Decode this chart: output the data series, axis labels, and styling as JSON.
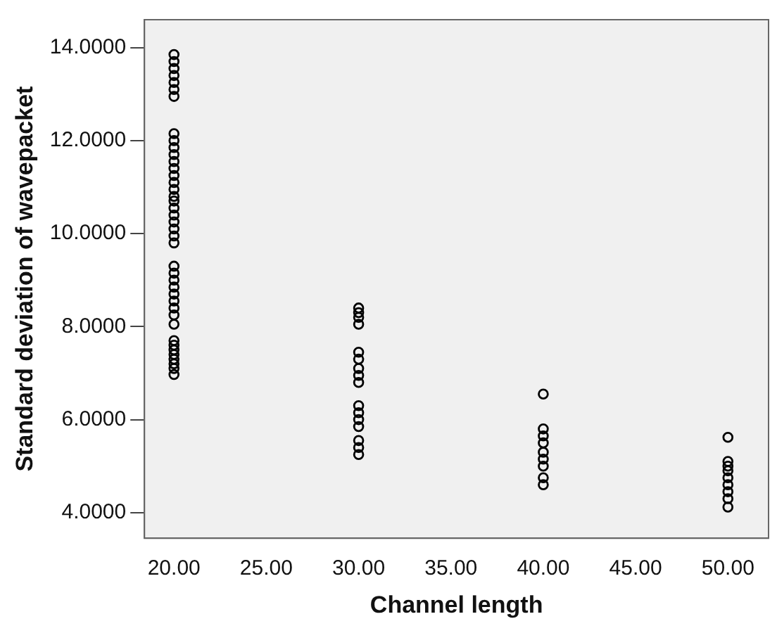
{
  "chart_data": {
    "type": "scatter",
    "xlabel": "Channel length",
    "ylabel": "Standard deviation of wavepacket",
    "xlim": [
      18.4,
      52.2
    ],
    "ylim": [
      3.45,
      14.6
    ],
    "xticks": [
      {
        "value": 20,
        "label": "20.00"
      },
      {
        "value": 25,
        "label": "25.00"
      },
      {
        "value": 30,
        "label": "30.00"
      },
      {
        "value": 35,
        "label": "35.00"
      },
      {
        "value": 40,
        "label": "40.00"
      },
      {
        "value": 45,
        "label": "45.00"
      },
      {
        "value": 50,
        "label": "50.00"
      }
    ],
    "yticks": [
      {
        "value": 4,
        "label": "4.0000"
      },
      {
        "value": 6,
        "label": "6.0000"
      },
      {
        "value": 8,
        "label": "8.0000"
      },
      {
        "value": 10,
        "label": "10.0000"
      },
      {
        "value": 12,
        "label": "12.0000"
      },
      {
        "value": 14,
        "label": "14.0000"
      }
    ],
    "grid": false,
    "legend": false,
    "marker": "circle",
    "series": [
      {
        "color": "#000000",
        "x": [
          20,
          20,
          20,
          20,
          20,
          20,
          20,
          20,
          20,
          20,
          20,
          20,
          20,
          20,
          20,
          20,
          20,
          20,
          20,
          20,
          20,
          20,
          20,
          20,
          20,
          20,
          20,
          20,
          20,
          20,
          20,
          20,
          20,
          20,
          20,
          20,
          20,
          20,
          20,
          20,
          20,
          30,
          30,
          30,
          30,
          30,
          30,
          30,
          30,
          30,
          30,
          30,
          30,
          30,
          30,
          30,
          30,
          40,
          40,
          40,
          40,
          40,
          40,
          40,
          40,
          40,
          50,
          50,
          50,
          50,
          50,
          50,
          50,
          50,
          50
        ],
        "values": [
          13.85,
          13.7,
          13.55,
          13.4,
          13.25,
          13.1,
          12.95,
          12.15,
          12.0,
          11.85,
          11.7,
          11.55,
          11.4,
          11.25,
          11.1,
          10.95,
          10.8,
          10.7,
          10.55,
          10.4,
          10.25,
          10.1,
          9.95,
          9.8,
          9.3,
          9.15,
          9.0,
          8.85,
          8.7,
          8.55,
          8.4,
          8.25,
          8.05,
          7.7,
          7.6,
          7.5,
          7.4,
          7.3,
          7.2,
          7.1,
          6.97,
          8.4,
          8.3,
          8.2,
          8.05,
          7.45,
          7.3,
          7.1,
          6.95,
          6.8,
          6.3,
          6.15,
          6.0,
          5.85,
          5.55,
          5.4,
          5.25,
          6.55,
          5.8,
          5.65,
          5.5,
          5.3,
          5.15,
          5.0,
          4.75,
          4.6,
          5.62,
          5.1,
          5.0,
          4.9,
          4.75,
          4.6,
          4.45,
          4.3,
          4.12
        ]
      }
    ]
  }
}
